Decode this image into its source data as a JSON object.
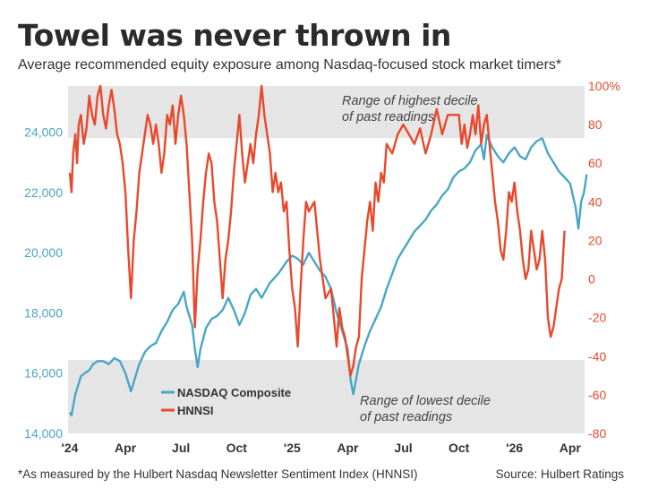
{
  "title": "Towel was never thrown in",
  "subtitle": "Average recommended equity exposure among Nasdaq-focused stock market timers*",
  "footnote": "*As measured by the Hulbert Nasdaq Newsletter Sentiment Index (HNNSI)",
  "source": "Source: Hulbert Ratings",
  "colors": {
    "nasdaq": "#4aa6c6",
    "hnnsi": "#e8492c",
    "band": "#e5e5e5"
  },
  "chart_data": {
    "type": "line",
    "title": "Towel was never thrown in",
    "x_tick_labels": [
      "'24",
      "Apr",
      "Jul",
      "Oct",
      "'25",
      "Apr",
      "Jul",
      "Oct",
      "'26",
      "Apr"
    ],
    "x_range": [
      "2024-01",
      "2026-04"
    ],
    "y_left": {
      "label": "NASDAQ Composite",
      "range": [
        14000,
        25000
      ],
      "tick_labels": [
        "14,000",
        "16,000",
        "18,000",
        "20,000",
        "22,000",
        "24,000"
      ],
      "ticks": [
        14000,
        16000,
        18000,
        20000,
        22000,
        24000
      ]
    },
    "y_right": {
      "label": "HNNSI",
      "range": [
        -80,
        100
      ],
      "tick_labels": [
        "-80",
        "-60",
        "-40",
        "-20",
        "0",
        "20",
        "40",
        "60",
        "80",
        "100%"
      ],
      "ticks": [
        -80,
        -60,
        -40,
        -20,
        0,
        20,
        40,
        60,
        80,
        100
      ]
    },
    "bands": [
      {
        "axis": "right",
        "from": 73,
        "to": 100,
        "label_line1": "Range of highest decile",
        "label_line2": "of past readings"
      },
      {
        "axis": "right",
        "from": -80,
        "to": -42,
        "label_line1": "Range of lowest decile",
        "label_line2": "of past readings"
      }
    ],
    "legend": [
      "NASDAQ Composite",
      "HNNSI"
    ],
    "series": [
      {
        "name": "NASDAQ Composite",
        "axis": "left",
        "points": [
          [
            0,
            14700
          ],
          [
            0.03,
            14600
          ],
          [
            0.06,
            14900
          ],
          [
            0.1,
            15300
          ],
          [
            0.15,
            15600
          ],
          [
            0.2,
            15900
          ],
          [
            0.27,
            16000
          ],
          [
            0.35,
            16100
          ],
          [
            0.42,
            16300
          ],
          [
            0.5,
            16400
          ],
          [
            0.6,
            16400
          ],
          [
            0.7,
            16300
          ],
          [
            0.8,
            16500
          ],
          [
            0.9,
            16400
          ],
          [
            1.0,
            16000
          ],
          [
            1.1,
            15400
          ],
          [
            1.15,
            15700
          ],
          [
            1.25,
            16300
          ],
          [
            1.35,
            16700
          ],
          [
            1.45,
            16900
          ],
          [
            1.55,
            17000
          ],
          [
            1.65,
            17400
          ],
          [
            1.75,
            17700
          ],
          [
            1.85,
            18100
          ],
          [
            1.95,
            18300
          ],
          [
            2.05,
            18700
          ],
          [
            2.1,
            18200
          ],
          [
            2.2,
            17600
          ],
          [
            2.25,
            16800
          ],
          [
            2.3,
            16200
          ],
          [
            2.35,
            16800
          ],
          [
            2.45,
            17500
          ],
          [
            2.55,
            17800
          ],
          [
            2.65,
            17900
          ],
          [
            2.75,
            18100
          ],
          [
            2.85,
            18500
          ],
          [
            2.95,
            18100
          ],
          [
            3.05,
            17600
          ],
          [
            3.15,
            18000
          ],
          [
            3.25,
            18600
          ],
          [
            3.35,
            18800
          ],
          [
            3.45,
            18500
          ],
          [
            3.6,
            19000
          ],
          [
            3.75,
            19300
          ],
          [
            3.9,
            19700
          ],
          [
            4.0,
            19900
          ],
          [
            4.1,
            19800
          ],
          [
            4.2,
            19600
          ],
          [
            4.3,
            20000
          ],
          [
            4.4,
            19700
          ],
          [
            4.5,
            19400
          ],
          [
            4.6,
            19200
          ],
          [
            4.7,
            18800
          ],
          [
            4.8,
            18000
          ],
          [
            4.9,
            17400
          ],
          [
            5.0,
            16800
          ],
          [
            5.05,
            15800
          ],
          [
            5.1,
            15300
          ],
          [
            5.15,
            15800
          ],
          [
            5.2,
            16300
          ],
          [
            5.3,
            16900
          ],
          [
            5.4,
            17400
          ],
          [
            5.5,
            17800
          ],
          [
            5.6,
            18200
          ],
          [
            5.7,
            18800
          ],
          [
            5.8,
            19300
          ],
          [
            5.9,
            19800
          ],
          [
            6.0,
            20100
          ],
          [
            6.1,
            20400
          ],
          [
            6.2,
            20700
          ],
          [
            6.3,
            20900
          ],
          [
            6.4,
            21100
          ],
          [
            6.5,
            21400
          ],
          [
            6.6,
            21600
          ],
          [
            6.7,
            21900
          ],
          [
            6.8,
            22100
          ],
          [
            6.9,
            22500
          ],
          [
            7.0,
            22700
          ],
          [
            7.1,
            22800
          ],
          [
            7.2,
            23000
          ],
          [
            7.3,
            23400
          ],
          [
            7.4,
            23600
          ],
          [
            7.45,
            23100
          ],
          [
            7.5,
            23900
          ],
          [
            7.6,
            23500
          ],
          [
            7.7,
            23200
          ],
          [
            7.8,
            23000
          ],
          [
            7.9,
            23300
          ],
          [
            8.0,
            23500
          ],
          [
            8.1,
            23200
          ],
          [
            8.2,
            23100
          ],
          [
            8.3,
            23500
          ],
          [
            8.4,
            23700
          ],
          [
            8.5,
            23800
          ],
          [
            8.6,
            23300
          ],
          [
            8.7,
            23000
          ],
          [
            8.8,
            22700
          ],
          [
            8.9,
            22500
          ],
          [
            9.0,
            22300
          ],
          [
            9.05,
            21900
          ],
          [
            9.1,
            21500
          ],
          [
            9.15,
            20800
          ],
          [
            9.2,
            21700
          ],
          [
            9.25,
            22000
          ],
          [
            9.3,
            22600
          ]
        ]
      },
      {
        "name": "HNNSI",
        "axis": "right",
        "points": [
          [
            0,
            55
          ],
          [
            0.03,
            45
          ],
          [
            0.06,
            65
          ],
          [
            0.1,
            75
          ],
          [
            0.13,
            60
          ],
          [
            0.16,
            80
          ],
          [
            0.2,
            85
          ],
          [
            0.25,
            70
          ],
          [
            0.3,
            78
          ],
          [
            0.35,
            95
          ],
          [
            0.4,
            85
          ],
          [
            0.45,
            80
          ],
          [
            0.5,
            95
          ],
          [
            0.55,
            100
          ],
          [
            0.6,
            85
          ],
          [
            0.65,
            78
          ],
          [
            0.7,
            90
          ],
          [
            0.75,
            98
          ],
          [
            0.8,
            88
          ],
          [
            0.85,
            75
          ],
          [
            0.9,
            70
          ],
          [
            0.95,
            60
          ],
          [
            1.0,
            45
          ],
          [
            1.05,
            15
          ],
          [
            1.1,
            -10
          ],
          [
            1.15,
            20
          ],
          [
            1.2,
            35
          ],
          [
            1.25,
            55
          ],
          [
            1.3,
            65
          ],
          [
            1.35,
            75
          ],
          [
            1.4,
            85
          ],
          [
            1.45,
            80
          ],
          [
            1.5,
            70
          ],
          [
            1.55,
            80
          ],
          [
            1.6,
            70
          ],
          [
            1.65,
            55
          ],
          [
            1.7,
            65
          ],
          [
            1.75,
            85
          ],
          [
            1.8,
            80
          ],
          [
            1.85,
            90
          ],
          [
            1.9,
            70
          ],
          [
            1.95,
            85
          ],
          [
            2.0,
            95
          ],
          [
            2.05,
            85
          ],
          [
            2.1,
            70
          ],
          [
            2.15,
            45
          ],
          [
            2.2,
            20
          ],
          [
            2.25,
            -25
          ],
          [
            2.3,
            5
          ],
          [
            2.35,
            20
          ],
          [
            2.4,
            40
          ],
          [
            2.45,
            55
          ],
          [
            2.5,
            65
          ],
          [
            2.55,
            60
          ],
          [
            2.6,
            40
          ],
          [
            2.65,
            30
          ],
          [
            2.7,
            10
          ],
          [
            2.75,
            -10
          ],
          [
            2.8,
            10
          ],
          [
            2.85,
            20
          ],
          [
            2.9,
            35
          ],
          [
            2.95,
            55
          ],
          [
            3.0,
            70
          ],
          [
            3.05,
            85
          ],
          [
            3.1,
            65
          ],
          [
            3.15,
            50
          ],
          [
            3.2,
            60
          ],
          [
            3.25,
            70
          ],
          [
            3.3,
            60
          ],
          [
            3.35,
            75
          ],
          [
            3.4,
            85
          ],
          [
            3.45,
            100
          ],
          [
            3.5,
            85
          ],
          [
            3.55,
            75
          ],
          [
            3.6,
            65
          ],
          [
            3.65,
            45
          ],
          [
            3.7,
            55
          ],
          [
            3.75,
            45
          ],
          [
            3.8,
            50
          ],
          [
            3.85,
            35
          ],
          [
            3.9,
            40
          ],
          [
            3.95,
            15
          ],
          [
            4.0,
            -5
          ],
          [
            4.05,
            -15
          ],
          [
            4.1,
            -35
          ],
          [
            4.15,
            -5
          ],
          [
            4.2,
            20
          ],
          [
            4.25,
            40
          ],
          [
            4.3,
            35
          ],
          [
            4.4,
            40
          ],
          [
            4.5,
            10
          ],
          [
            4.6,
            -10
          ],
          [
            4.7,
            -5
          ],
          [
            4.75,
            -20
          ],
          [
            4.8,
            -35
          ],
          [
            4.85,
            -15
          ],
          [
            4.9,
            -25
          ],
          [
            4.95,
            -30
          ],
          [
            5.0,
            -40
          ],
          [
            5.05,
            -50
          ],
          [
            5.1,
            -45
          ],
          [
            5.15,
            -35
          ],
          [
            5.2,
            -30
          ],
          [
            5.25,
            0
          ],
          [
            5.3,
            15
          ],
          [
            5.35,
            30
          ],
          [
            5.4,
            40
          ],
          [
            5.45,
            25
          ],
          [
            5.5,
            50
          ],
          [
            5.55,
            40
          ],
          [
            5.6,
            55
          ],
          [
            5.65,
            50
          ],
          [
            5.7,
            70
          ],
          [
            5.8,
            65
          ],
          [
            5.9,
            75
          ],
          [
            6.0,
            80
          ],
          [
            6.1,
            75
          ],
          [
            6.2,
            70
          ],
          [
            6.3,
            78
          ],
          [
            6.4,
            65
          ],
          [
            6.5,
            75
          ],
          [
            6.6,
            88
          ],
          [
            6.7,
            75
          ],
          [
            6.8,
            85
          ],
          [
            6.9,
            85
          ],
          [
            7.0,
            85
          ],
          [
            7.05,
            70
          ],
          [
            7.1,
            80
          ],
          [
            7.15,
            68
          ],
          [
            7.2,
            75
          ],
          [
            7.25,
            85
          ],
          [
            7.3,
            75
          ],
          [
            7.35,
            90
          ],
          [
            7.4,
            70
          ],
          [
            7.45,
            80
          ],
          [
            7.5,
            85
          ],
          [
            7.55,
            70
          ],
          [
            7.6,
            55
          ],
          [
            7.65,
            40
          ],
          [
            7.7,
            30
          ],
          [
            7.75,
            15
          ],
          [
            7.8,
            10
          ],
          [
            7.85,
            25
          ],
          [
            7.9,
            45
          ],
          [
            7.95,
            40
          ],
          [
            8.0,
            50
          ],
          [
            8.05,
            35
          ],
          [
            8.1,
            25
          ],
          [
            8.15,
            10
          ],
          [
            8.2,
            0
          ],
          [
            8.25,
            5
          ],
          [
            8.3,
            25
          ],
          [
            8.35,
            15
          ],
          [
            8.4,
            5
          ],
          [
            8.45,
            10
          ],
          [
            8.5,
            25
          ],
          [
            8.55,
            10
          ],
          [
            8.6,
            -20
          ],
          [
            8.65,
            -30
          ],
          [
            8.7,
            -25
          ],
          [
            8.75,
            -15
          ],
          [
            8.8,
            -5
          ],
          [
            8.85,
            0
          ],
          [
            8.9,
            25
          ]
        ]
      }
    ]
  }
}
